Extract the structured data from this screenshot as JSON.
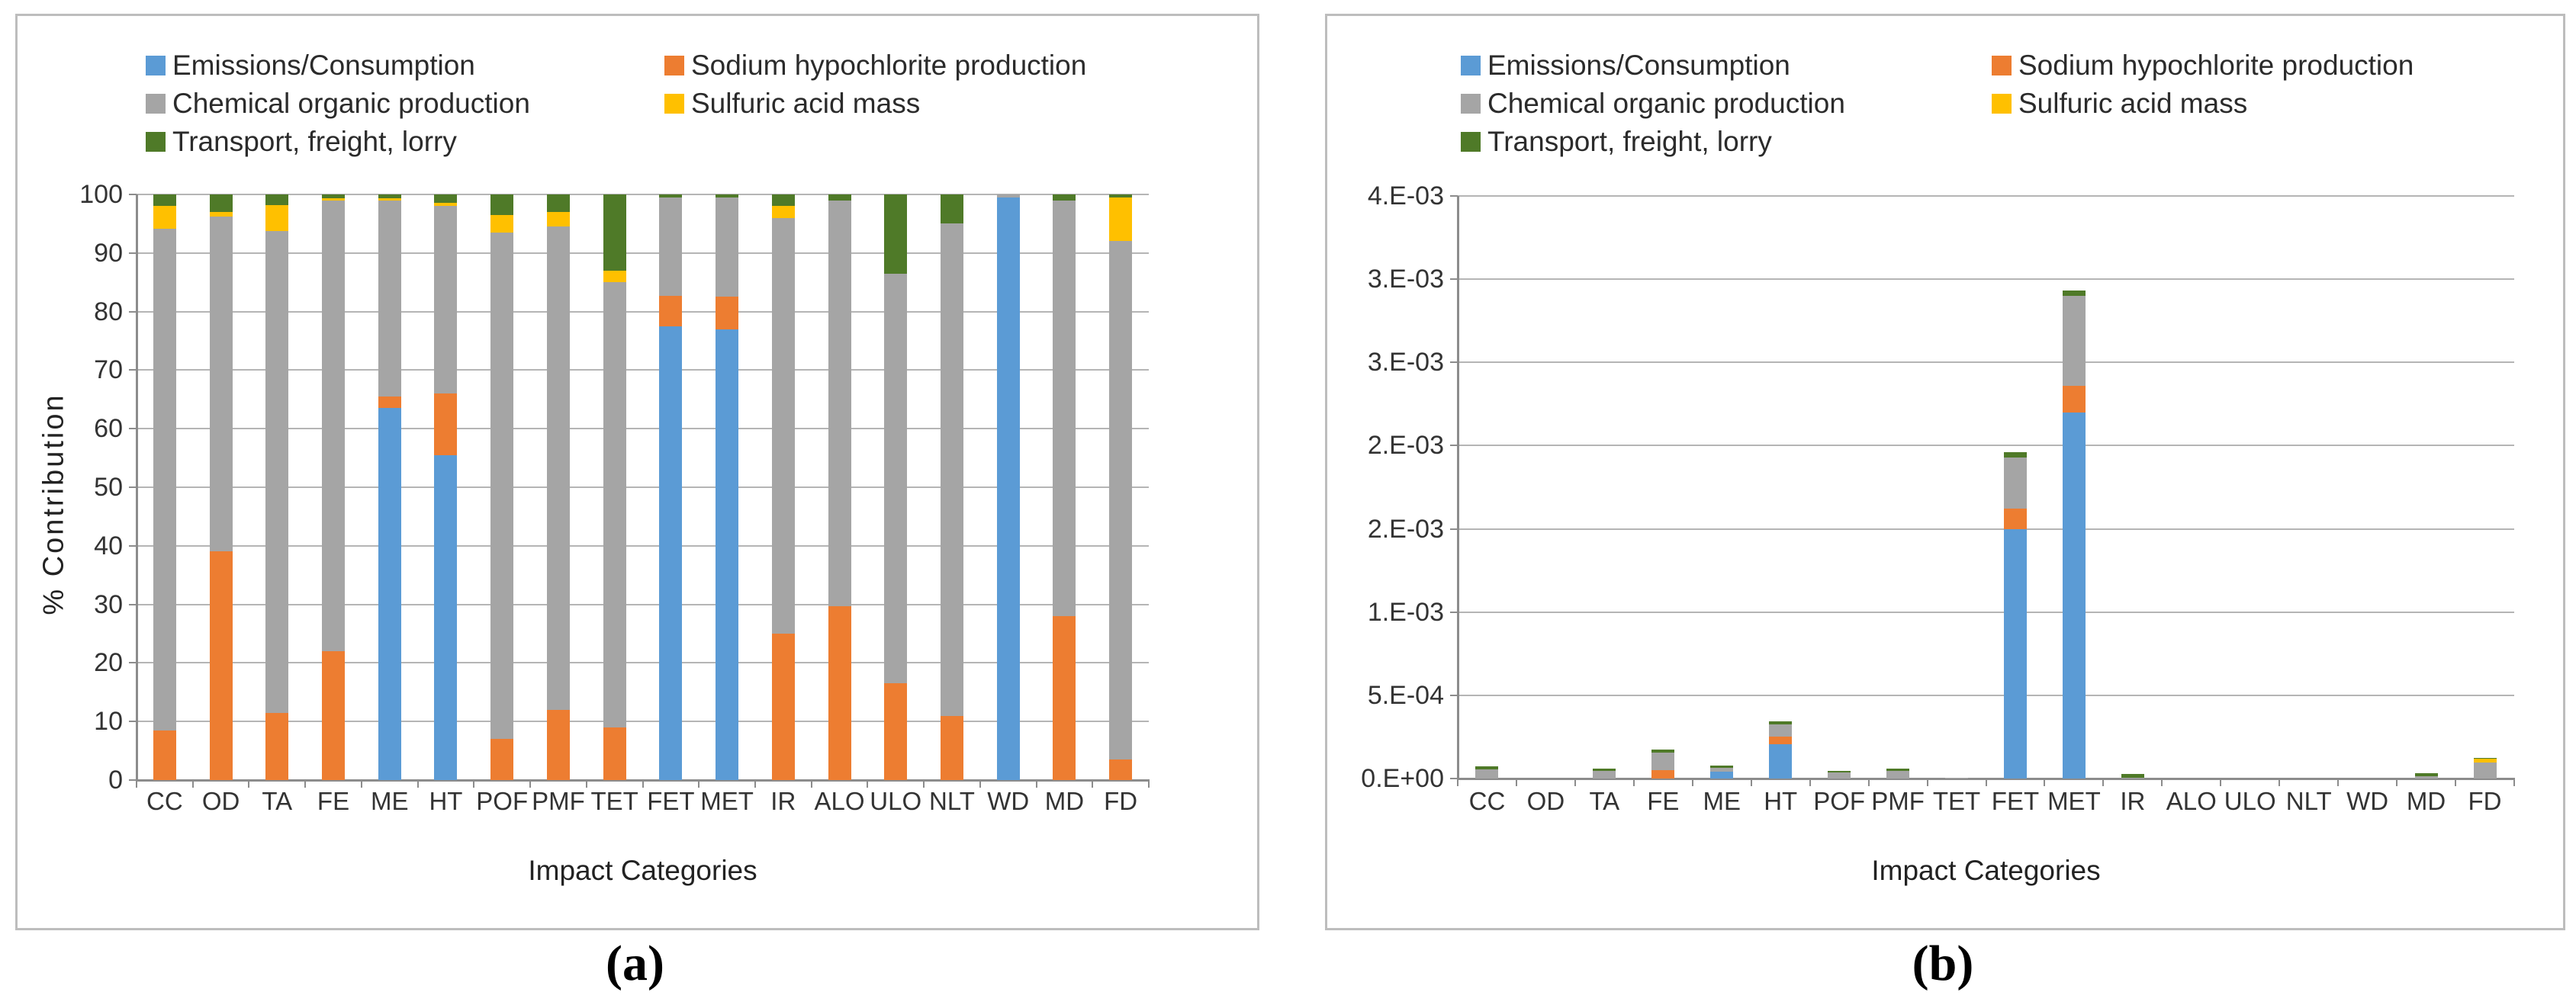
{
  "figure": {
    "captions": [
      "(a)",
      "(b)"
    ]
  },
  "legend": {
    "items": [
      {
        "label": "Emissions/Consumption",
        "color": "#5B9BD5"
      },
      {
        "label": "Sodium hypochlorite production",
        "color": "#ED7D31"
      },
      {
        "label": "Chemical organic production",
        "color": "#A5A5A5"
      },
      {
        "label": "Sulfuric acid mass",
        "color": "#FFC000"
      },
      {
        "label": "Transport, freight, lorry",
        "color": "#4F7A28"
      }
    ]
  },
  "chart_data": [
    {
      "id": "a",
      "type": "bar",
      "stacked": true,
      "units": "percent",
      "title": "",
      "xlabel": "Impact Categories",
      "ylabel": "% Contribution",
      "ylim": [
        0,
        100
      ],
      "grid": true,
      "legend_position": "top-left",
      "ytick_values": [
        0,
        10,
        20,
        30,
        40,
        50,
        60,
        70,
        80,
        90,
        100
      ],
      "ytick_labels": [
        "0",
        "10",
        "20",
        "30",
        "40",
        "50",
        "60",
        "70",
        "80",
        "90",
        "100"
      ],
      "categories": [
        "CC",
        "OD",
        "TA",
        "FE",
        "ME",
        "HT",
        "POF",
        "PMF",
        "TET",
        "FET",
        "MET",
        "IR",
        "ALO",
        "ULO",
        "NLT",
        "WD",
        "MD",
        "FD"
      ],
      "series": [
        {
          "name": "Emissions/Consumption",
          "color": "#5B9BD5",
          "values": [
            0,
            0,
            0,
            0,
            63.5,
            55.5,
            0,
            0,
            0,
            77.5,
            77,
            0,
            0,
            0,
            0,
            99.5,
            0,
            0
          ]
        },
        {
          "name": "Sodium hypochlorite production",
          "color": "#ED7D31",
          "values": [
            8.5,
            39,
            11.5,
            22,
            2,
            10.5,
            7,
            12,
            9,
            5.2,
            5.5,
            25,
            29.7,
            16.5,
            11,
            0,
            28,
            3.5
          ]
        },
        {
          "name": "Chemical organic production",
          "color": "#A5A5A5",
          "values": [
            85.7,
            57.2,
            82.3,
            77,
            33.5,
            32,
            86.5,
            82.5,
            76,
            16.8,
            17,
            71,
            69.3,
            70,
            84,
            0.5,
            71,
            88.5
          ]
        },
        {
          "name": "Sulfuric acid mass",
          "color": "#FFC000",
          "values": [
            3.8,
            0.8,
            4.4,
            0.4,
            0.3,
            0.6,
            3,
            2.5,
            2,
            0,
            0,
            2,
            0,
            0,
            0,
            0,
            0,
            7.5
          ]
        },
        {
          "name": "Transport, freight, lorry",
          "color": "#4F7A28",
          "values": [
            2,
            3,
            1.8,
            0.6,
            0.7,
            1.4,
            3.5,
            3,
            13,
            0.5,
            0.5,
            2,
            1,
            13.5,
            5,
            0,
            1,
            0.5
          ]
        }
      ]
    },
    {
      "id": "b",
      "type": "bar",
      "stacked": true,
      "units": "absolute",
      "title": "",
      "xlabel": "Impact Categories",
      "ylabel": "",
      "ylim": [
        0,
        0.0035
      ],
      "grid": true,
      "legend_position": "top-left",
      "ytick_values": [
        0,
        0.0005,
        0.001,
        0.0015,
        0.002,
        0.0025,
        0.003,
        0.0035
      ],
      "ytick_labels": [
        "0.E+00",
        "5.E-04",
        "1.E-03",
        "2.E-03",
        "2.E-03",
        "3.E-03",
        "3.E-03",
        "4.E-03"
      ],
      "categories": [
        "CC",
        "OD",
        "TA",
        "FE",
        "ME",
        "HT",
        "POF",
        "PMF",
        "TET",
        "FET",
        "MET",
        "IR",
        "ALO",
        "ULO",
        "NLT",
        "WD",
        "MD",
        "FD"
      ],
      "series": [
        {
          "name": "Emissions/Consumption",
          "color": "#5B9BD5",
          "values": [
            0,
            0,
            0,
            0,
            4e-05,
            0.000205,
            0,
            0,
            0,
            0.0015,
            0.0022,
            0,
            0,
            0,
            0,
            0,
            0,
            0
          ]
        },
        {
          "name": "Sodium hypochlorite production",
          "color": "#ED7D31",
          "values": [
            0,
            0,
            0,
            5e-05,
            0,
            4.5e-05,
            0,
            0,
            0,
            0.00012,
            0.00016,
            0,
            0,
            0,
            0,
            0,
            0,
            0
          ]
        },
        {
          "name": "Chemical organic production",
          "color": "#A5A5A5",
          "values": [
            5.5e-05,
            0,
            4.5e-05,
            0.000105,
            2.2e-05,
            7.5e-05,
            3.5e-05,
            4.8e-05,
            3e-06,
            0.00031,
            0.00054,
            6e-06,
            0,
            0,
            0,
            0,
            1.3e-05,
            9.4e-05
          ]
        },
        {
          "name": "Sulfuric acid mass",
          "color": "#FFC000",
          "values": [
            0,
            0,
            0,
            0,
            0,
            0,
            0,
            0,
            0,
            0,
            0,
            0,
            0,
            0,
            0,
            0,
            0,
            2.3e-05
          ]
        },
        {
          "name": "Transport, freight, lorry",
          "color": "#4F7A28",
          "values": [
            2e-05,
            0,
            1.5e-05,
            2e-05,
            1.4e-05,
            2e-05,
            1.2e-05,
            1.2e-05,
            0,
            3e-05,
            3e-05,
            2.2e-05,
            0,
            0,
            0,
            0,
            2e-05,
            5e-06
          ]
        }
      ]
    }
  ]
}
